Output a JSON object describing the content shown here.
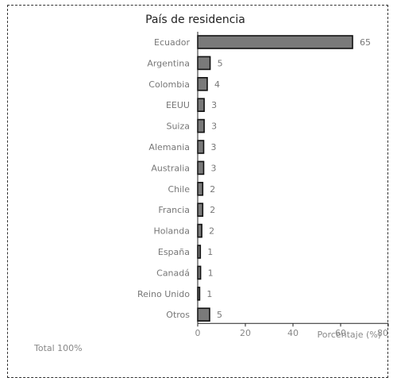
{
  "chart_data": {
    "type": "bar",
    "orientation": "horizontal",
    "title": "País de residencia",
    "xlabel": "Porcentaje (%)",
    "footnote": "Total 100%",
    "xlim": [
      0,
      80
    ],
    "xticks": [
      "0",
      "20",
      "40",
      "60",
      "80"
    ],
    "categories": [
      "Ecuador",
      "Argentina",
      "Colombia",
      "EEUU",
      "Suiza",
      "Alemania",
      "Australia",
      "Chile",
      "Francia",
      "Holanda",
      "España",
      "Canadá",
      "Reino Unido",
      "Otros"
    ],
    "values": [
      65,
      5,
      4,
      3,
      3,
      3,
      3,
      2,
      2,
      2,
      1,
      1,
      1,
      5
    ],
    "value_labels": [
      "65",
      "5",
      "4",
      "3",
      "3",
      "3",
      "3",
      "2",
      "2",
      "2",
      "1",
      "1",
      "1",
      "5"
    ],
    "plotted_values": [
      65,
      5.2,
      4,
      2.7,
      2.7,
      2.5,
      2.5,
      2.1,
      2.1,
      1.7,
      1.1,
      1.2,
      0.8,
      5
    ],
    "grid": false,
    "bar_color": "#7a7a7a"
  }
}
